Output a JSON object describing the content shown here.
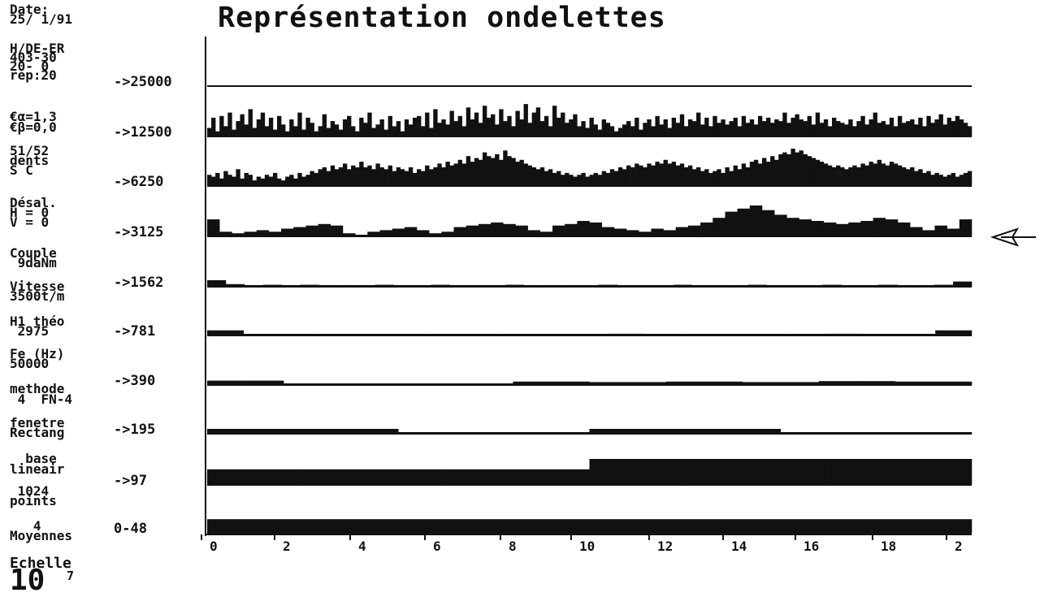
{
  "title": "Représentation ondelettes",
  "side_info": [
    "Date:\n25/ 1/91",
    "H/DE-ER\n403-30\n20- 0\nrep:20",
    "€α=1,3\n€β=0,0",
    "51/52\ndents\nS C",
    "Désal.\nH = 0\nV = 0",
    "Couple\n 9daNm",
    "Vitesse\n3500t/m",
    "H1 théo\n 2975",
    "Fe (Hz)\n50000",
    "methode\n 4  FN-4",
    "fenetre\nRectang",
    "  base\nlineair",
    " 1024\npoints",
    "   4\nMoyennes"
  ],
  "scale": {
    "label": "Echelle",
    "value": "10",
    "exponent": "7"
  },
  "colors": {
    "ink": "#111111",
    "background": "#ffffff"
  },
  "marker": "arrow-left-icon",
  "chart_data": {
    "type": "bar",
    "title": "Représentation ondelettes",
    "xlabel": "",
    "ylabel": "",
    "x_ticks": [
      "0",
      "2",
      "4",
      "6",
      "8",
      "10",
      "12",
      "14",
      "16",
      "18",
      "2"
    ],
    "xlim": [
      0,
      20.5
    ],
    "bands": [
      {
        "label": "->25000",
        "values": []
      },
      {
        "label": "->12500",
        "values": [
          0.25,
          0.55,
          0.15,
          0.6,
          0.3,
          0.7,
          0.2,
          0.45,
          0.65,
          0.35,
          0.8,
          0.25,
          0.5,
          0.7,
          0.3,
          0.55,
          0.2,
          0.6,
          0.35,
          0.15,
          0.5,
          0.3,
          0.7,
          0.2,
          0.55,
          0.4,
          0.15,
          0.3,
          0.65,
          0.25,
          0.45,
          0.35,
          0.2,
          0.5,
          0.6,
          0.3,
          0.15,
          0.55,
          0.4,
          0.7,
          0.25,
          0.35,
          0.5,
          0.2,
          0.6,
          0.3,
          0.45,
          0.15,
          0.5,
          0.35,
          0.55,
          0.6,
          0.3,
          0.7,
          0.25,
          0.8,
          0.4,
          0.5,
          0.35,
          0.75,
          0.45,
          0.6,
          0.3,
          0.85,
          0.5,
          0.7,
          0.4,
          0.9,
          0.55,
          0.65,
          0.35,
          0.8,
          0.45,
          0.6,
          0.3,
          0.75,
          0.5,
          0.95,
          0.4,
          0.7,
          0.85,
          0.45,
          0.6,
          0.3,
          0.9,
          0.55,
          0.7,
          0.4,
          0.5,
          0.65,
          0.3,
          0.45,
          0.25,
          0.55,
          0.35,
          0.2,
          0.5,
          0.4,
          0.3,
          0.15,
          0.25,
          0.35,
          0.45,
          0.3,
          0.55,
          0.2,
          0.4,
          0.5,
          0.3,
          0.6,
          0.35,
          0.5,
          0.25,
          0.55,
          0.4,
          0.65,
          0.3,
          0.5,
          0.45,
          0.7,
          0.35,
          0.55,
          0.3,
          0.6,
          0.4,
          0.5,
          0.35,
          0.45,
          0.55,
          0.3,
          0.6,
          0.4,
          0.5,
          0.35,
          0.6,
          0.45,
          0.55,
          0.4,
          0.5,
          0.45,
          0.7,
          0.4,
          0.55,
          0.65,
          0.5,
          0.45,
          0.6,
          0.35,
          0.7,
          0.4,
          0.5,
          0.3,
          0.55,
          0.45,
          0.4,
          0.35,
          0.5,
          0.3,
          0.45,
          0.6,
          0.35,
          0.5,
          0.7,
          0.4,
          0.45,
          0.35,
          0.55,
          0.3,
          0.6,
          0.4,
          0.45,
          0.5,
          0.35,
          0.55,
          0.3,
          0.6,
          0.4,
          0.5,
          0.65,
          0.35,
          0.55,
          0.45,
          0.6,
          0.5,
          0.4,
          0.3
        ]
      },
      {
        "label": "->6250",
        "values": [
          0.3,
          0.25,
          0.35,
          0.2,
          0.4,
          0.3,
          0.25,
          0.45,
          0.2,
          0.35,
          0.3,
          0.15,
          0.25,
          0.2,
          0.3,
          0.25,
          0.35,
          0.2,
          0.15,
          0.25,
          0.3,
          0.2,
          0.35,
          0.25,
          0.3,
          0.4,
          0.35,
          0.45,
          0.5,
          0.4,
          0.55,
          0.45,
          0.5,
          0.6,
          0.45,
          0.55,
          0.5,
          0.65,
          0.5,
          0.55,
          0.45,
          0.6,
          0.5,
          0.45,
          0.55,
          0.4,
          0.5,
          0.45,
          0.4,
          0.5,
          0.35,
          0.45,
          0.4,
          0.55,
          0.45,
          0.5,
          0.6,
          0.5,
          0.65,
          0.55,
          0.6,
          0.7,
          0.6,
          0.8,
          0.65,
          0.75,
          0.7,
          0.9,
          0.8,
          0.75,
          0.85,
          0.7,
          0.95,
          0.8,
          0.75,
          0.65,
          0.7,
          0.6,
          0.55,
          0.5,
          0.45,
          0.5,
          0.4,
          0.45,
          0.35,
          0.4,
          0.3,
          0.35,
          0.3,
          0.25,
          0.3,
          0.35,
          0.25,
          0.3,
          0.35,
          0.3,
          0.4,
          0.35,
          0.45,
          0.4,
          0.5,
          0.45,
          0.55,
          0.5,
          0.6,
          0.55,
          0.5,
          0.6,
          0.55,
          0.65,
          0.6,
          0.7,
          0.6,
          0.65,
          0.55,
          0.6,
          0.5,
          0.55,
          0.45,
          0.5,
          0.4,
          0.45,
          0.35,
          0.4,
          0.45,
          0.35,
          0.5,
          0.4,
          0.55,
          0.45,
          0.6,
          0.5,
          0.65,
          0.7,
          0.6,
          0.75,
          0.65,
          0.8,
          0.7,
          0.85,
          0.9,
          0.85,
          1.0,
          0.9,
          0.95,
          0.85,
          0.8,
          0.75,
          0.7,
          0.65,
          0.6,
          0.55,
          0.5,
          0.55,
          0.5,
          0.45,
          0.5,
          0.55,
          0.5,
          0.6,
          0.55,
          0.65,
          0.6,
          0.7,
          0.6,
          0.55,
          0.65,
          0.6,
          0.55,
          0.5,
          0.45,
          0.5,
          0.4,
          0.45,
          0.35,
          0.4,
          0.3,
          0.35,
          0.3,
          0.25,
          0.3,
          0.35,
          0.25,
          0.3,
          0.35,
          0.4
        ]
      },
      {
        "label": "->3125",
        "values": [
          0.55,
          0.15,
          0.1,
          0.15,
          0.2,
          0.15,
          0.25,
          0.3,
          0.35,
          0.4,
          0.35,
          0.1,
          0.05,
          0.15,
          0.2,
          0.25,
          0.3,
          0.2,
          0.1,
          0.15,
          0.3,
          0.35,
          0.4,
          0.45,
          0.4,
          0.35,
          0.2,
          0.15,
          0.35,
          0.4,
          0.5,
          0.45,
          0.3,
          0.25,
          0.2,
          0.15,
          0.25,
          0.2,
          0.3,
          0.35,
          0.45,
          0.6,
          0.8,
          0.9,
          1.0,
          0.85,
          0.7,
          0.6,
          0.55,
          0.5,
          0.45,
          0.4,
          0.45,
          0.5,
          0.6,
          0.55,
          0.45,
          0.3,
          0.2,
          0.35,
          0.25,
          0.55
        ]
      },
      {
        "label": "->1562",
        "values": [
          0.5,
          0.2,
          0.1,
          0.15,
          0.1,
          0.15,
          0.1,
          0.05,
          0.1,
          0.15,
          0.1,
          0.1,
          0.15,
          0.1,
          0.05,
          0.1,
          0.15,
          0.1,
          0.05,
          0.1,
          0.1,
          0.15,
          0.1,
          0.05,
          0.1,
          0.15,
          0.1,
          0.05,
          0.1,
          0.15,
          0.1,
          0.05,
          0.1,
          0.15,
          0.1,
          0.1,
          0.15,
          0.1,
          0.1,
          0.15,
          0.4
        ]
      },
      {
        "label": "->781",
        "values": [
          0.45,
          0.1,
          0.05,
          0.1,
          0.05,
          0.1,
          0.05,
          0.1,
          0.05,
          0.1,
          0.1,
          0.15,
          0.1,
          0.05,
          0.1,
          0.05,
          0.1,
          0.15,
          0.05,
          0.1,
          0.45
        ]
      },
      {
        "label": "->390",
        "values": [
          0.45,
          0.45,
          0.15,
          0.15,
          0.1,
          0.1,
          0.15,
          0.15,
          0.35,
          0.35,
          0.3,
          0.3,
          0.35,
          0.35,
          0.3,
          0.3,
          0.4,
          0.4,
          0.35,
          0.35
        ]
      },
      {
        "label": "->195",
        "values": [
          0.5,
          0.5,
          0.5,
          0.5,
          0.1,
          0.1,
          0.1,
          0.1,
          0.5,
          0.5,
          0.5,
          0.5,
          0.1,
          0.1,
          0.1,
          0.1
        ]
      },
      {
        "label": "->97",
        "values": [
          0.6,
          0.6,
          0.6,
          0.6,
          0.6,
          0.6,
          0.6,
          0.6,
          1.0,
          1.0,
          1.0,
          1.0,
          1.0,
          1.0,
          1.0,
          1.0
        ]
      },
      {
        "label": "0-48",
        "values": [
          0.7
        ]
      }
    ]
  }
}
